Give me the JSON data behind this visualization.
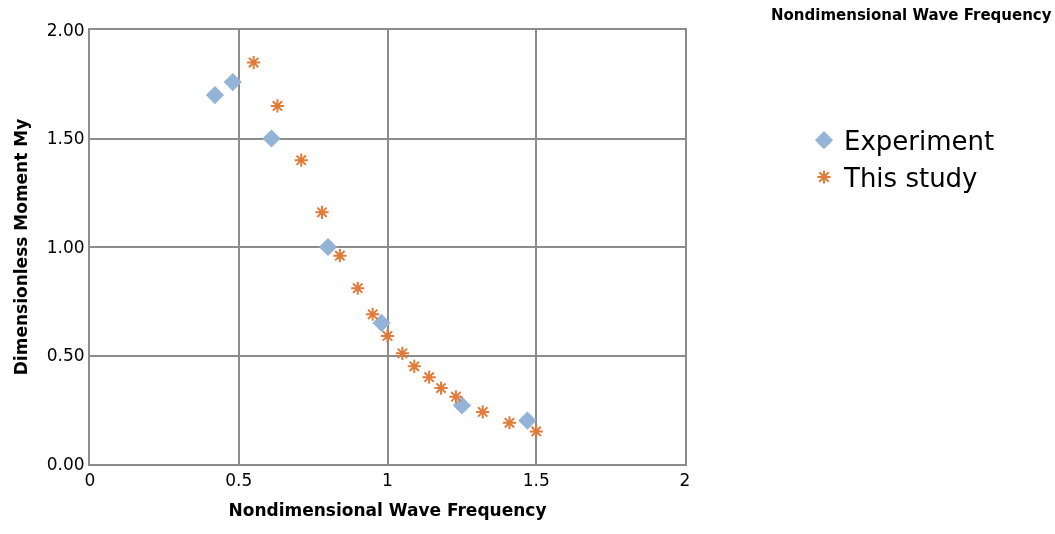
{
  "chart_data": {
    "type": "scatter",
    "xlabel": "Nondimensional Wave Frequency",
    "ylabel": "Dimensionless Moment My",
    "annotations": [
      "Nondimensional Wave Frequency"
    ],
    "series": [
      {
        "name": "Experiment",
        "color": "#93b3d7",
        "marker": "diamond",
        "x": [
          0.42,
          0.48,
          0.61,
          0.8,
          0.98,
          1.25,
          1.47
        ],
        "values": [
          1.7,
          1.76,
          1.5,
          1.0,
          0.65,
          0.27,
          0.2
        ]
      },
      {
        "name": "This study",
        "color": "#e07b39",
        "marker": "cross",
        "x": [
          0.55,
          0.63,
          0.71,
          0.78,
          0.84,
          0.9,
          0.95,
          1.0,
          1.05,
          1.09,
          1.14,
          1.18,
          1.23,
          1.32,
          1.41,
          1.5
        ],
        "values": [
          1.85,
          1.65,
          1.4,
          1.16,
          0.96,
          0.81,
          0.69,
          0.59,
          0.51,
          0.45,
          0.4,
          0.35,
          0.31,
          0.24,
          0.19,
          0.15
        ]
      }
    ],
    "xlim": [
      0,
      2
    ],
    "xticks": [
      0,
      0.5,
      1,
      1.5,
      2
    ],
    "ylim": [
      0,
      2
    ],
    "yticks": [
      {
        "value": 0,
        "label": "0.00"
      },
      {
        "value": 0.5,
        "label": "0.50"
      },
      {
        "value": 1,
        "label": "1.00"
      },
      {
        "value": 1.5,
        "label": "1.50"
      },
      {
        "value": 2,
        "label": "2.00"
      }
    ],
    "grid": true,
    "legend": "right"
  }
}
